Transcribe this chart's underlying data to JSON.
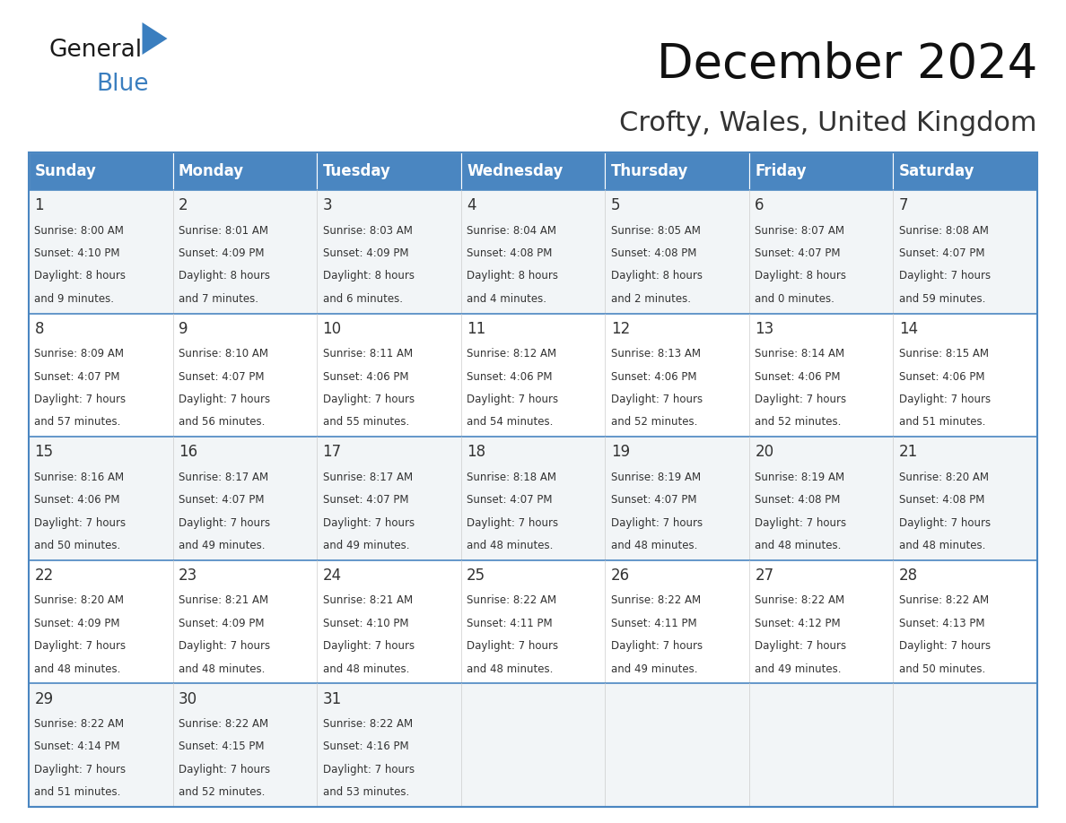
{
  "title": "December 2024",
  "subtitle": "Crofty, Wales, United Kingdom",
  "header_bg": "#4a86c1",
  "header_text": "#ffffff",
  "row_bg_odd": "#f2f5f7",
  "row_bg_even": "#ffffff",
  "border_color": "#4a86c1",
  "cell_line_color": "#bbccdd",
  "days_of_week": [
    "Sunday",
    "Monday",
    "Tuesday",
    "Wednesday",
    "Thursday",
    "Friday",
    "Saturday"
  ],
  "cells": [
    [
      {
        "day": 1,
        "sunrise": "8:00 AM",
        "sunset": "4:10 PM",
        "daylight_hours": 8,
        "daylight_minutes": 9
      },
      {
        "day": 2,
        "sunrise": "8:01 AM",
        "sunset": "4:09 PM",
        "daylight_hours": 8,
        "daylight_minutes": 7
      },
      {
        "day": 3,
        "sunrise": "8:03 AM",
        "sunset": "4:09 PM",
        "daylight_hours": 8,
        "daylight_minutes": 6
      },
      {
        "day": 4,
        "sunrise": "8:04 AM",
        "sunset": "4:08 PM",
        "daylight_hours": 8,
        "daylight_minutes": 4
      },
      {
        "day": 5,
        "sunrise": "8:05 AM",
        "sunset": "4:08 PM",
        "daylight_hours": 8,
        "daylight_minutes": 2
      },
      {
        "day": 6,
        "sunrise": "8:07 AM",
        "sunset": "4:07 PM",
        "daylight_hours": 8,
        "daylight_minutes": 0
      },
      {
        "day": 7,
        "sunrise": "8:08 AM",
        "sunset": "4:07 PM",
        "daylight_hours": 7,
        "daylight_minutes": 59
      }
    ],
    [
      {
        "day": 8,
        "sunrise": "8:09 AM",
        "sunset": "4:07 PM",
        "daylight_hours": 7,
        "daylight_minutes": 57
      },
      {
        "day": 9,
        "sunrise": "8:10 AM",
        "sunset": "4:07 PM",
        "daylight_hours": 7,
        "daylight_minutes": 56
      },
      {
        "day": 10,
        "sunrise": "8:11 AM",
        "sunset": "4:06 PM",
        "daylight_hours": 7,
        "daylight_minutes": 55
      },
      {
        "day": 11,
        "sunrise": "8:12 AM",
        "sunset": "4:06 PM",
        "daylight_hours": 7,
        "daylight_minutes": 54
      },
      {
        "day": 12,
        "sunrise": "8:13 AM",
        "sunset": "4:06 PM",
        "daylight_hours": 7,
        "daylight_minutes": 52
      },
      {
        "day": 13,
        "sunrise": "8:14 AM",
        "sunset": "4:06 PM",
        "daylight_hours": 7,
        "daylight_minutes": 52
      },
      {
        "day": 14,
        "sunrise": "8:15 AM",
        "sunset": "4:06 PM",
        "daylight_hours": 7,
        "daylight_minutes": 51
      }
    ],
    [
      {
        "day": 15,
        "sunrise": "8:16 AM",
        "sunset": "4:06 PM",
        "daylight_hours": 7,
        "daylight_minutes": 50
      },
      {
        "day": 16,
        "sunrise": "8:17 AM",
        "sunset": "4:07 PM",
        "daylight_hours": 7,
        "daylight_minutes": 49
      },
      {
        "day": 17,
        "sunrise": "8:17 AM",
        "sunset": "4:07 PM",
        "daylight_hours": 7,
        "daylight_minutes": 49
      },
      {
        "day": 18,
        "sunrise": "8:18 AM",
        "sunset": "4:07 PM",
        "daylight_hours": 7,
        "daylight_minutes": 48
      },
      {
        "day": 19,
        "sunrise": "8:19 AM",
        "sunset": "4:07 PM",
        "daylight_hours": 7,
        "daylight_minutes": 48
      },
      {
        "day": 20,
        "sunrise": "8:19 AM",
        "sunset": "4:08 PM",
        "daylight_hours": 7,
        "daylight_minutes": 48
      },
      {
        "day": 21,
        "sunrise": "8:20 AM",
        "sunset": "4:08 PM",
        "daylight_hours": 7,
        "daylight_minutes": 48
      }
    ],
    [
      {
        "day": 22,
        "sunrise": "8:20 AM",
        "sunset": "4:09 PM",
        "daylight_hours": 7,
        "daylight_minutes": 48
      },
      {
        "day": 23,
        "sunrise": "8:21 AM",
        "sunset": "4:09 PM",
        "daylight_hours": 7,
        "daylight_minutes": 48
      },
      {
        "day": 24,
        "sunrise": "8:21 AM",
        "sunset": "4:10 PM",
        "daylight_hours": 7,
        "daylight_minutes": 48
      },
      {
        "day": 25,
        "sunrise": "8:22 AM",
        "sunset": "4:11 PM",
        "daylight_hours": 7,
        "daylight_minutes": 48
      },
      {
        "day": 26,
        "sunrise": "8:22 AM",
        "sunset": "4:11 PM",
        "daylight_hours": 7,
        "daylight_minutes": 49
      },
      {
        "day": 27,
        "sunrise": "8:22 AM",
        "sunset": "4:12 PM",
        "daylight_hours": 7,
        "daylight_minutes": 49
      },
      {
        "day": 28,
        "sunrise": "8:22 AM",
        "sunset": "4:13 PM",
        "daylight_hours": 7,
        "daylight_minutes": 50
      }
    ],
    [
      {
        "day": 29,
        "sunrise": "8:22 AM",
        "sunset": "4:14 PM",
        "daylight_hours": 7,
        "daylight_minutes": 51
      },
      {
        "day": 30,
        "sunrise": "8:22 AM",
        "sunset": "4:15 PM",
        "daylight_hours": 7,
        "daylight_minutes": 52
      },
      {
        "day": 31,
        "sunrise": "8:22 AM",
        "sunset": "4:16 PM",
        "daylight_hours": 7,
        "daylight_minutes": 53
      },
      null,
      null,
      null,
      null
    ]
  ],
  "logo_text_general": "General",
  "logo_text_blue": "Blue",
  "logo_triangle_color": "#3a7ebf",
  "title_fontsize": 38,
  "subtitle_fontsize": 22,
  "header_fontsize": 12,
  "day_num_fontsize": 12,
  "cell_text_fontsize": 8.5
}
